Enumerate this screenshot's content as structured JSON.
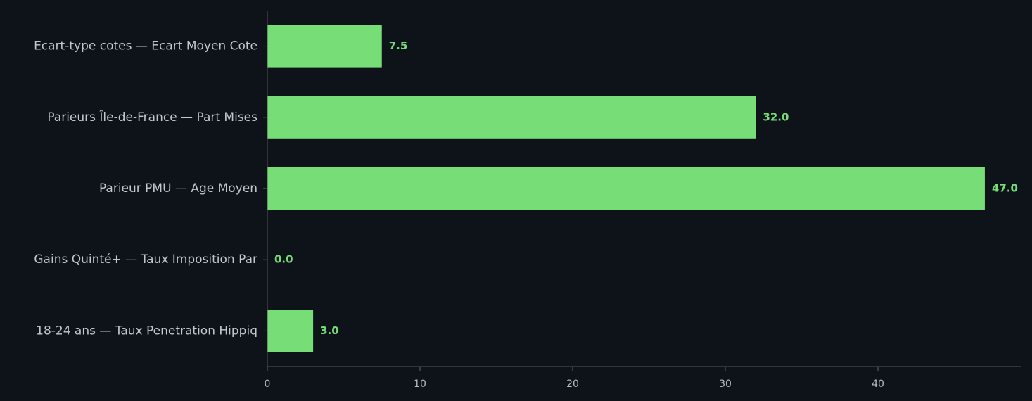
{
  "chart_data": {
    "type": "barh",
    "categories": [
      "Ecart-type cotes — Ecart Moyen Cote",
      "Parieurs Île-de-France — Part Mises",
      "Parieur PMU — Age Moyen",
      "Gains Quinté+ — Taux Imposition Par",
      "18-24 ans — Taux Penetration Hippiq"
    ],
    "values": [
      7.5,
      32.0,
      47.0,
      0.0,
      3.0
    ],
    "value_labels": [
      "7.5",
      "32.0",
      "47.0",
      "0.0",
      "3.0"
    ],
    "color": "#77dd77",
    "xlim": [
      0,
      49.4
    ],
    "xticks": [
      0,
      10,
      20,
      30,
      40
    ],
    "grid": false
  }
}
